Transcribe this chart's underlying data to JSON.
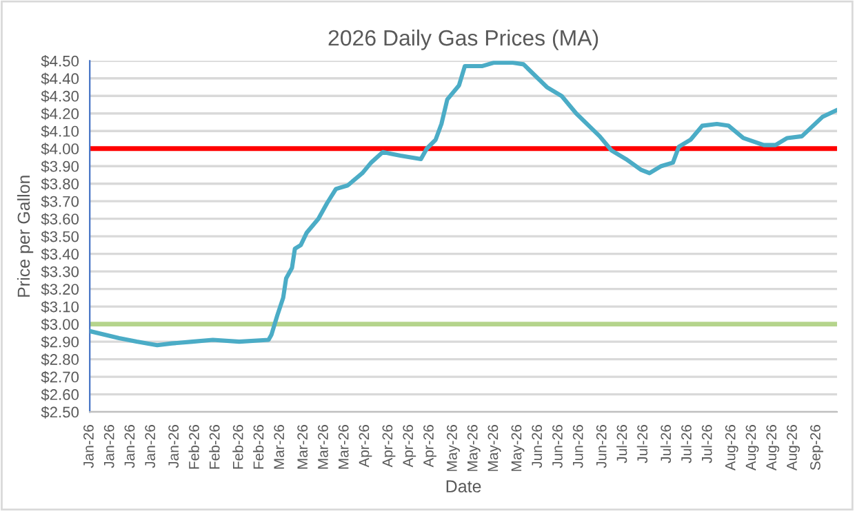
{
  "chart_data": {
    "type": "line",
    "title": "2026 Daily Gas Prices (MA)",
    "xlabel": "Date",
    "ylabel": "Price per Gallon",
    "x": [
      "2026-01-01",
      "2026-01-11",
      "2026-01-17",
      "2026-01-24",
      "2026-01-29",
      "2026-02-05",
      "2026-02-12",
      "2026-02-21",
      "2026-03-03",
      "2026-03-04",
      "2026-03-06",
      "2026-03-08",
      "2026-03-09",
      "2026-03-11",
      "2026-03-12",
      "2026-03-14",
      "2026-03-16",
      "2026-03-20",
      "2026-03-23",
      "2026-03-26",
      "2026-03-30",
      "2026-04-04",
      "2026-04-07",
      "2026-04-11",
      "2026-04-14",
      "2026-04-17",
      "2026-04-24",
      "2026-04-26",
      "2026-04-29",
      "2026-05-01",
      "2026-05-03",
      "2026-05-07",
      "2026-05-09",
      "2026-05-15",
      "2026-05-19",
      "2026-05-25",
      "2026-05-29",
      "2026-06-06",
      "2026-06-11",
      "2026-06-16",
      "2026-06-24",
      "2026-06-28",
      "2026-07-03",
      "2026-07-08",
      "2026-07-11",
      "2026-07-15",
      "2026-07-19",
      "2026-07-21",
      "2026-07-25",
      "2026-07-29",
      "2026-08-03",
      "2026-08-07",
      "2026-08-12",
      "2026-08-19",
      "2026-08-23",
      "2026-08-27",
      "2026-09-01",
      "2026-09-08",
      "2026-09-13"
    ],
    "series": [
      {
        "color": "#4bacc6",
        "values": [
          2.96,
          2.92,
          2.9,
          2.88,
          2.89,
          2.9,
          2.91,
          2.9,
          2.91,
          2.94,
          3.05,
          3.15,
          3.26,
          3.32,
          3.43,
          3.45,
          3.52,
          3.6,
          3.69,
          3.77,
          3.79,
          3.86,
          3.92,
          3.98,
          3.97,
          3.96,
          3.94,
          4.0,
          4.05,
          4.14,
          4.28,
          4.36,
          4.47,
          4.47,
          4.49,
          4.49,
          4.48,
          4.35,
          4.3,
          4.2,
          4.07,
          3.99,
          3.94,
          3.88,
          3.86,
          3.9,
          3.92,
          4.01,
          4.05,
          4.13,
          4.14,
          4.13,
          4.06,
          4.02,
          4.02,
          4.06,
          4.07,
          4.18,
          4.22
        ]
      }
    ],
    "xlim": [
      "2026-01-01",
      "2026-09-13"
    ],
    "xticks": [
      {
        "value": "2026-01-01",
        "label": "Jan-26"
      },
      {
        "value": "2026-01-08",
        "label": "Jan-26"
      },
      {
        "value": "2026-01-15",
        "label": "Jan-26"
      },
      {
        "value": "2026-01-22",
        "label": "Jan-26"
      },
      {
        "value": "2026-01-30",
        "label": "Jan-26"
      },
      {
        "value": "2026-02-06",
        "label": "Feb-26"
      },
      {
        "value": "2026-02-13",
        "label": "Feb-26"
      },
      {
        "value": "2026-02-21",
        "label": "Feb-26"
      },
      {
        "value": "2026-02-28",
        "label": "Feb-26"
      },
      {
        "value": "2026-03-07",
        "label": "Mar-26"
      },
      {
        "value": "2026-03-15",
        "label": "Mar-26"
      },
      {
        "value": "2026-03-22",
        "label": "Mar-26"
      },
      {
        "value": "2026-03-29",
        "label": "Mar-26"
      },
      {
        "value": "2026-04-05",
        "label": "Apr-26"
      },
      {
        "value": "2026-04-13",
        "label": "Apr-26"
      },
      {
        "value": "2026-04-20",
        "label": "Apr-26"
      },
      {
        "value": "2026-04-27",
        "label": "Apr-26"
      },
      {
        "value": "2026-05-05",
        "label": "May-26"
      },
      {
        "value": "2026-05-12",
        "label": "May-26"
      },
      {
        "value": "2026-05-19",
        "label": "May-26"
      },
      {
        "value": "2026-05-27",
        "label": "May-26"
      },
      {
        "value": "2026-06-03",
        "label": "Jun-26"
      },
      {
        "value": "2026-06-10",
        "label": "Jun-26"
      },
      {
        "value": "2026-06-17",
        "label": "Jun-26"
      },
      {
        "value": "2026-06-25",
        "label": "Jun-26"
      },
      {
        "value": "2026-07-02",
        "label": "Jul-26"
      },
      {
        "value": "2026-07-09",
        "label": "Jul-26"
      },
      {
        "value": "2026-07-17",
        "label": "Jul-26"
      },
      {
        "value": "2026-07-24",
        "label": "Jul-26"
      },
      {
        "value": "2026-07-31",
        "label": "Jul-26"
      },
      {
        "value": "2026-08-08",
        "label": "Aug-26"
      },
      {
        "value": "2026-08-15",
        "label": "Aug-26"
      },
      {
        "value": "2026-08-22",
        "label": "Aug-26"
      },
      {
        "value": "2026-08-29",
        "label": "Aug-26"
      },
      {
        "value": "2026-09-06",
        "label": "Sep-26"
      }
    ],
    "ylim": [
      2.5,
      4.5
    ],
    "yticks": [
      {
        "value": 2.5,
        "label": "$2.50"
      },
      {
        "value": 2.6,
        "label": "$2.60"
      },
      {
        "value": 2.7,
        "label": "$2.70"
      },
      {
        "value": 2.8,
        "label": "$2.80"
      },
      {
        "value": 2.9,
        "label": "$2.90"
      },
      {
        "value": 3.0,
        "label": "$3.00"
      },
      {
        "value": 3.1,
        "label": "$3.10"
      },
      {
        "value": 3.2,
        "label": "$3.20"
      },
      {
        "value": 3.3,
        "label": "$3.30"
      },
      {
        "value": 3.4,
        "label": "$3.40"
      },
      {
        "value": 3.5,
        "label": "$3.50"
      },
      {
        "value": 3.6,
        "label": "$3.60"
      },
      {
        "value": 3.7,
        "label": "$3.70"
      },
      {
        "value": 3.8,
        "label": "$3.80"
      },
      {
        "value": 3.9,
        "label": "$3.90"
      },
      {
        "value": 4.0,
        "label": "$4.00"
      },
      {
        "value": 4.1,
        "label": "$4.10"
      },
      {
        "value": 4.2,
        "label": "$4.20"
      },
      {
        "value": 4.3,
        "label": "$4.30"
      },
      {
        "value": 4.4,
        "label": "$4.40"
      },
      {
        "value": 4.5,
        "label": "$4.50"
      }
    ],
    "ref_lines": [
      {
        "axis": "y",
        "value": 4.0,
        "color": "#ff0000"
      },
      {
        "axis": "y",
        "value": 3.0,
        "color": "#b5d48c"
      }
    ],
    "grid": "y",
    "marker": "none",
    "line_style": "solid"
  }
}
